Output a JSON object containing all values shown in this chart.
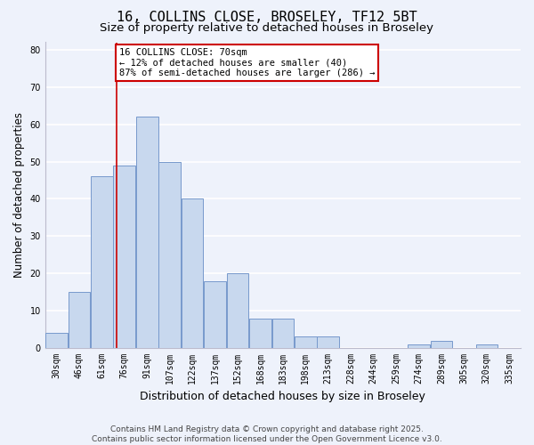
{
  "title": "16, COLLINS CLOSE, BROSELEY, TF12 5BT",
  "subtitle": "Size of property relative to detached houses in Broseley",
  "xlabel": "Distribution of detached houses by size in Broseley",
  "ylabel": "Number of detached properties",
  "background_color": "#eef2fb",
  "bar_color": "#c8d8ee",
  "bar_edge_color": "#7799cc",
  "grid_color": "#ffffff",
  "vline_color": "#cc0000",
  "annotation_title": "16 COLLINS CLOSE: 70sqm",
  "annotation_line1": "← 12% of detached houses are smaller (40)",
  "annotation_line2": "87% of semi-detached houses are larger (286) →",
  "annotation_box_color": "#ffffff",
  "annotation_box_edge": "#cc0000",
  "bin_edges": [
    22.5,
    37.5,
    52.5,
    67.5,
    82.5,
    97.5,
    112.5,
    127.5,
    142.5,
    157.5,
    172.5,
    187.5,
    202.5,
    217.5,
    232.5,
    247.5,
    262.5,
    277.5,
    292.5,
    307.5,
    322.5,
    337.5
  ],
  "bin_labels": [
    "30sqm",
    "46sqm",
    "61sqm",
    "76sqm",
    "91sqm",
    "107sqm",
    "122sqm",
    "137sqm",
    "152sqm",
    "168sqm",
    "183sqm",
    "198sqm",
    "213sqm",
    "228sqm",
    "244sqm",
    "259sqm",
    "274sqm",
    "289sqm",
    "305sqm",
    "320sqm",
    "335sqm"
  ],
  "counts": [
    4,
    15,
    46,
    49,
    62,
    50,
    40,
    18,
    20,
    8,
    8,
    3,
    3,
    0,
    0,
    0,
    1,
    2,
    0,
    1,
    0
  ],
  "vline_x": 70,
  "ylim": [
    0,
    82
  ],
  "yticks": [
    0,
    10,
    20,
    30,
    40,
    50,
    60,
    70,
    80
  ],
  "footer1": "Contains HM Land Registry data © Crown copyright and database right 2025.",
  "footer2": "Contains public sector information licensed under the Open Government Licence v3.0.",
  "title_fontsize": 11,
  "subtitle_fontsize": 9.5,
  "xlabel_fontsize": 9,
  "ylabel_fontsize": 8.5,
  "tick_fontsize": 7,
  "annotation_fontsize": 7.5,
  "footer_fontsize": 6.5
}
